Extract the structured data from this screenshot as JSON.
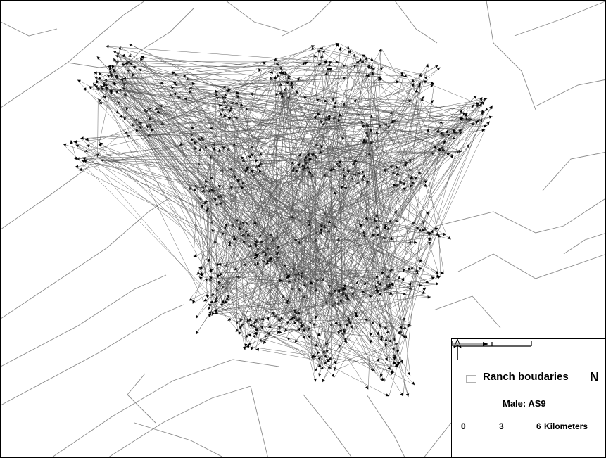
{
  "map": {
    "colors": {
      "boundary": "#8a8a8a",
      "track": "#555555",
      "arrowhead": "#000000",
      "frame": "#000000"
    }
  },
  "legend": {
    "boundary_label": "Ranch boudaries",
    "track_label": "Male: AS9",
    "north_label": "N",
    "scale": {
      "ticks": [
        "0",
        "3",
        "6"
      ],
      "unit": "Kilometers"
    }
  }
}
